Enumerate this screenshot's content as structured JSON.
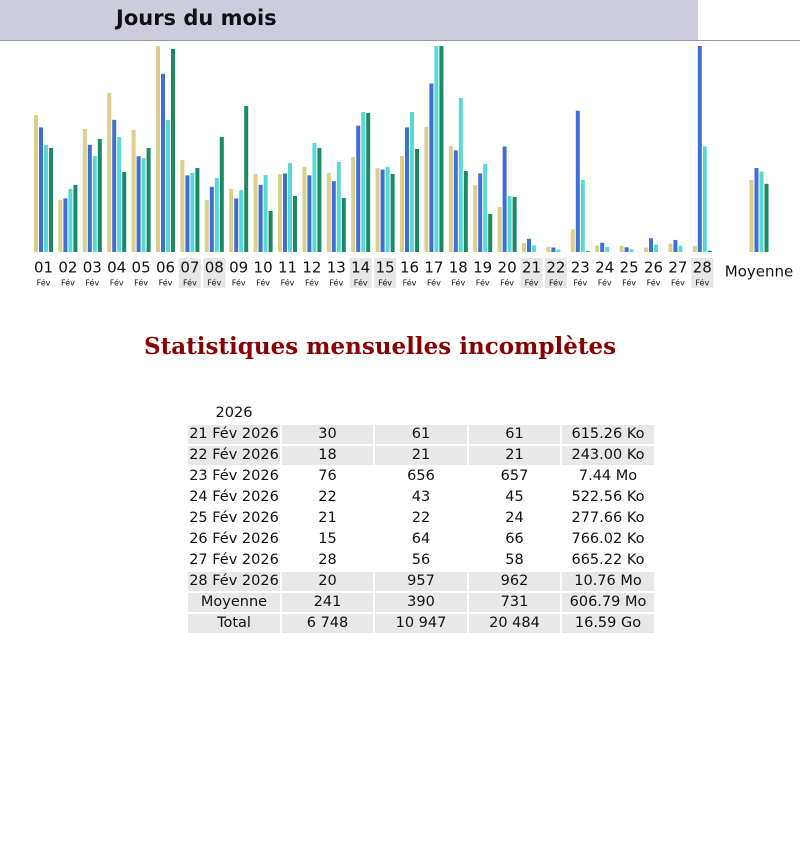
{
  "chart_data": {
    "type": "bar",
    "title": "Jours du mois",
    "categories": [
      "01",
      "02",
      "03",
      "04",
      "05",
      "06",
      "07",
      "08",
      "09",
      "10",
      "11",
      "12",
      "13",
      "14",
      "15",
      "16",
      "17",
      "18",
      "19",
      "20",
      "21",
      "22",
      "23",
      "24",
      "25",
      "26",
      "27",
      "28",
      "Moyenne"
    ],
    "month_label": "Fév",
    "weekend": [
      false,
      false,
      false,
      false,
      false,
      false,
      true,
      true,
      false,
      false,
      false,
      false,
      false,
      true,
      true,
      false,
      false,
      false,
      false,
      false,
      true,
      true,
      false,
      false,
      false,
      false,
      false,
      true,
      false
    ],
    "series": [
      {
        "color": "#dccf8a",
        "values": [
          459,
          174,
          412,
          533,
          409,
          690,
          308,
          174,
          211,
          261,
          261,
          285,
          265,
          318,
          281,
          322,
          419,
          355,
          224,
          151,
          30,
          18,
          76,
          22,
          21,
          15,
          28,
          20,
          241
        ]
      },
      {
        "color": "#3f6fd6",
        "values": [
          579,
          249,
          498,
          614,
          445,
          828,
          356,
          303,
          249,
          312,
          365,
          356,
          329,
          587,
          383,
          579,
          783,
          472,
          365,
          490,
          61,
          21,
          656,
          43,
          22,
          64,
          56,
          957,
          390
        ]
      },
      {
        "color": "#5ad8d8",
        "values": [
          974,
          573,
          874,
          1047,
          855,
          1201,
          719,
          673,
          564,
          701,
          810,
          992,
          819,
          1274,
          774,
          1274,
          1875,
          1401,
          801,
          510,
          61,
          21,
          657,
          45,
          24,
          66,
          58,
          962,
          731
        ]
      },
      {
        "color": "#1b8a62",
        "values": [
          926,
          596,
          1006,
          712,
          926,
          1807,
          748,
          1024,
          1299,
          365,
          498,
          926,
          481,
          1237,
          694,
          917,
          1833,
          721,
          338,
          490,
          0.6,
          0.24,
          7.44,
          0.51,
          0.27,
          0.75,
          0.65,
          10.76,
          606.79
        ]
      }
    ]
  },
  "section_title": "Statistiques mensuelles incomplètes",
  "table": {
    "cut_off_text": "2026",
    "rows": [
      {
        "shaded": true,
        "cells": [
          "21 Fév 2026",
          "30",
          "61",
          "61",
          "615.26 Ko"
        ]
      },
      {
        "shaded": true,
        "cells": [
          "22 Fév 2026",
          "18",
          "21",
          "21",
          "243.00 Ko"
        ]
      },
      {
        "shaded": false,
        "cells": [
          "23 Fév 2026",
          "76",
          "656",
          "657",
          "7.44 Mo"
        ]
      },
      {
        "shaded": false,
        "cells": [
          "24 Fév 2026",
          "22",
          "43",
          "45",
          "522.56 Ko"
        ]
      },
      {
        "shaded": false,
        "cells": [
          "25 Fév 2026",
          "21",
          "22",
          "24",
          "277.66 Ko"
        ]
      },
      {
        "shaded": false,
        "cells": [
          "26 Fév 2026",
          "15",
          "64",
          "66",
          "766.02 Ko"
        ]
      },
      {
        "shaded": false,
        "cells": [
          "27 Fév 2026",
          "28",
          "56",
          "58",
          "665.22 Ko"
        ]
      },
      {
        "shaded": true,
        "cells": [
          "28 Fév 2026",
          "20",
          "957",
          "962",
          "10.76 Mo"
        ]
      },
      {
        "shaded": true,
        "cells": [
          "Moyenne",
          "241",
          "390",
          "731",
          "606.79 Mo"
        ]
      },
      {
        "shaded": true,
        "cells": [
          "Total",
          "6 748",
          "10 947",
          "20 484",
          "16.59 Go"
        ]
      }
    ]
  }
}
